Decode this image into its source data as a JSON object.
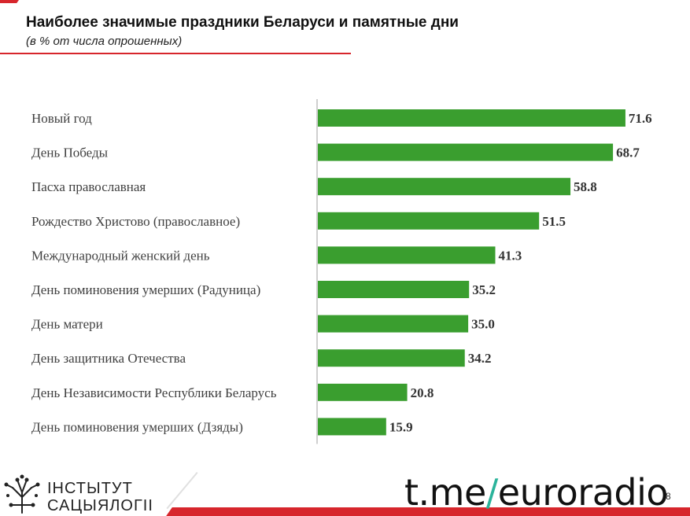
{
  "header": {
    "title": "Наиболее значимые праздники Беларуси и памятные дни",
    "subtitle": "(в % от числа опрошенных)"
  },
  "chart_data": {
    "type": "bar",
    "orientation": "horizontal",
    "categories": [
      "Новый год",
      "День Победы",
      "Пасха православная",
      "Рождество Христово (православное)",
      "Международный женский день",
      "День поминовения умерших (Радуница)",
      "День матери",
      "День защитника Отечества",
      "День Независимости Республики Беларусь",
      "День поминовения умерших (Дзяды)"
    ],
    "values": [
      71.6,
      68.7,
      58.8,
      51.5,
      41.3,
      35.2,
      35.0,
      34.2,
      20.8,
      15.9
    ],
    "value_labels": [
      "71.6",
      "68.7",
      "58.8",
      "51.5",
      "41.3",
      "35.2",
      "35.0",
      "34.2",
      "20.8",
      "15.9"
    ],
    "xlim": [
      0,
      100
    ],
    "bar_color": "#3a9e2f",
    "grid": false,
    "legend": "none"
  },
  "logo": {
    "line1": "ІНСТЫТУТ",
    "line2": "САЦЫЯЛОГІІ"
  },
  "watermark": {
    "prefix": "t.me",
    "slash": "/",
    "suffix": "euroradio"
  },
  "page_number": "8",
  "colors": {
    "accent": "#d7262c",
    "bar": "#3a9e2f",
    "watermark_slash": "#2bb39b"
  }
}
